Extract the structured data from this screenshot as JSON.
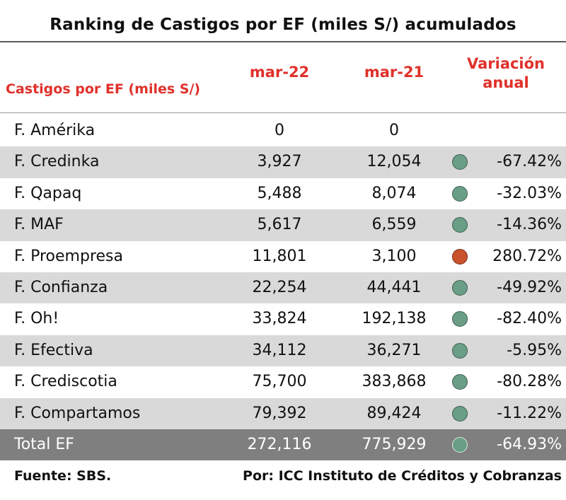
{
  "title": "Ranking de Castigos por EF (miles S/) acumulados",
  "header": {
    "label": "Castigos por EF (miles S/)",
    "col1": "mar-22",
    "col2": "mar-21",
    "col3_line1": "Variación",
    "col3_line2": "anual"
  },
  "colors": {
    "header_red": "#e0302a",
    "green_dot": "#6a9e86",
    "red_dot": "#c8532d",
    "total_bg": "#7f7f7f",
    "shade_bg": "#d9d9d9"
  },
  "rows": [
    {
      "name": "F. Amérika",
      "mar22": "0",
      "mar21": "0",
      "variation": "",
      "indicator": ""
    },
    {
      "name": "F. Credinka",
      "mar22": "3,927",
      "mar21": "12,054",
      "variation": "-67.42%",
      "indicator": "green"
    },
    {
      "name": "F. Qapaq",
      "mar22": "5,488",
      "mar21": "8,074",
      "variation": "-32.03%",
      "indicator": "green"
    },
    {
      "name": "F. MAF",
      "mar22": "5,617",
      "mar21": "6,559",
      "variation": "-14.36%",
      "indicator": "green"
    },
    {
      "name": "F. Proempresa",
      "mar22": "11,801",
      "mar21": "3,100",
      "variation": "280.72%",
      "indicator": "red"
    },
    {
      "name": "F. Confianza",
      "mar22": "22,254",
      "mar21": "44,441",
      "variation": "-49.92%",
      "indicator": "green"
    },
    {
      "name": "F. Oh!",
      "mar22": "33,824",
      "mar21": "192,138",
      "variation": "-82.40%",
      "indicator": "green"
    },
    {
      "name": "F. Efectiva",
      "mar22": "34,112",
      "mar21": "36,271",
      "variation": "-5.95%",
      "indicator": "green"
    },
    {
      "name": "F. Crediscotia",
      "mar22": "75,700",
      "mar21": "383,868",
      "variation": "-80.28%",
      "indicator": "green"
    },
    {
      "name": "F. Compartamos",
      "mar22": "79,392",
      "mar21": "89,424",
      "variation": "-11.22%",
      "indicator": "green"
    },
    {
      "name": "Total EF",
      "mar22": "272,116",
      "mar21": "775,929",
      "variation": "-64.93%",
      "indicator": "green"
    }
  ],
  "footer": {
    "source": "Fuente: SBS.",
    "author": "Por: ICC Instituto de Créditos y Cobranzas"
  }
}
